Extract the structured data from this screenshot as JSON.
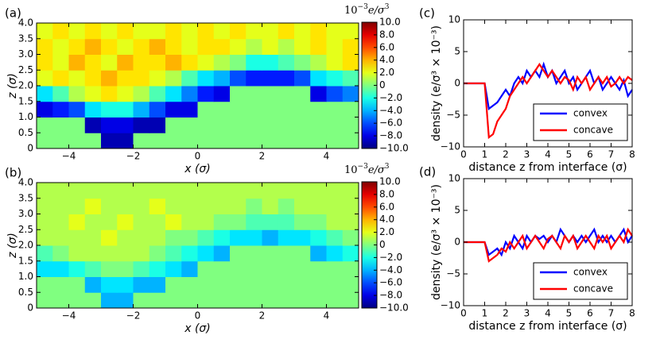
{
  "chart_data": [
    {
      "type": "heatmap",
      "panel_label": "(a)",
      "xlabel": "x (σ)",
      "ylabel": "z (σ)",
      "x": [
        -4.75,
        -4.25,
        -3.75,
        -3.25,
        -2.75,
        -2.25,
        -1.75,
        -1.25,
        -0.75,
        -0.25,
        0.25,
        0.75,
        1.25,
        1.75,
        2.25,
        2.75,
        3.25,
        3.75,
        4.25,
        4.75
      ],
      "y": [
        0.25,
        0.75,
        1.25,
        1.75,
        2.25,
        2.75,
        3.25,
        3.75
      ],
      "values": [
        [
          0,
          0,
          0,
          0,
          -9,
          -9,
          0,
          0,
          0,
          0,
          0,
          0,
          0,
          0,
          0,
          0,
          0,
          0,
          0,
          0
        ],
        [
          0,
          0,
          0,
          -9,
          -8,
          -8,
          -9,
          -9,
          0,
          0,
          0,
          0,
          0,
          0,
          0,
          0,
          0,
          0,
          0,
          0
        ],
        [
          -8,
          -7,
          -6,
          -3,
          -2,
          -2,
          -4,
          -6,
          -8,
          -8,
          0,
          0,
          0,
          0,
          0,
          0,
          0,
          0,
          0,
          0
        ],
        [
          -3,
          -1,
          1,
          2,
          3,
          2,
          1,
          -1,
          -3,
          -5,
          -7,
          -8,
          0,
          0,
          0,
          0,
          0,
          -8,
          -6,
          -5
        ],
        [
          2,
          3,
          2,
          3,
          4,
          3,
          3,
          2,
          1,
          -1,
          -3,
          -4,
          -6,
          -7,
          -7,
          -7,
          -6,
          -3,
          -2,
          -1
        ],
        [
          3,
          2,
          4,
          3,
          2,
          4,
          3,
          3,
          4,
          3,
          2,
          1,
          0,
          -2,
          -2,
          -1,
          0,
          1,
          2,
          3
        ],
        [
          3,
          2,
          3,
          4,
          3,
          2,
          3,
          4,
          3,
          2,
          3,
          3,
          2,
          1,
          2,
          1,
          2,
          3,
          2,
          3
        ],
        [
          2,
          3,
          2,
          3,
          2,
          3,
          2,
          2,
          3,
          2,
          3,
          2,
          3,
          2,
          2,
          3,
          2,
          3,
          2,
          2
        ]
      ],
      "xlim": [
        -5,
        5
      ],
      "ylim": [
        0,
        4
      ],
      "xticks": [
        {
          "value": -4,
          "label": "−4"
        },
        {
          "value": -2,
          "label": "−2"
        },
        0,
        2,
        4
      ],
      "yticks": [
        0,
        0.5,
        {
          "value": 1,
          "label": "1.0"
        },
        1.5,
        {
          "value": 2,
          "label": "2.0"
        },
        2.5,
        {
          "value": 3,
          "label": "3.0"
        },
        3.5,
        {
          "value": 4,
          "label": "4.0"
        }
      ],
      "colormap": "jet",
      "colorbar": {
        "label": [
          "10",
          "−3",
          "e/σ",
          "3"
        ],
        "lim": [
          -10,
          10
        ],
        "ticks": [
          {
            "value": 10,
            "label": "10.0"
          },
          {
            "value": 8,
            "label": "8.0"
          },
          {
            "value": 6,
            "label": "6.0"
          },
          {
            "value": 4,
            "label": "4.0"
          },
          {
            "value": 2,
            "label": "2.0"
          },
          0,
          {
            "value": -2,
            "label": "−2.0"
          },
          {
            "value": -4,
            "label": "−4.0"
          },
          {
            "value": -6,
            "label": "−6.0"
          },
          {
            "value": -8,
            "label": "−8.0"
          },
          {
            "value": -10,
            "label": "−10.0"
          }
        ]
      }
    },
    {
      "type": "heatmap",
      "panel_label": "(b)",
      "xlabel": "x (σ)",
      "ylabel": "z (σ)",
      "x": [
        -4.75,
        -4.25,
        -3.75,
        -3.25,
        -2.75,
        -2.25,
        -1.75,
        -1.25,
        -0.75,
        -0.25,
        0.25,
        0.75,
        1.25,
        1.75,
        2.25,
        2.75,
        3.25,
        3.75,
        4.25,
        4.75
      ],
      "y": [
        0.25,
        0.75,
        1.25,
        1.75,
        2.25,
        2.75,
        3.25,
        3.75
      ],
      "values": [
        [
          0,
          0,
          0,
          0,
          -4,
          -4,
          0,
          0,
          0,
          0,
          0,
          0,
          0,
          0,
          0,
          0,
          0,
          0,
          0,
          0
        ],
        [
          0,
          0,
          0,
          -4,
          -3,
          -3,
          -4,
          -4,
          0,
          0,
          0,
          0,
          0,
          0,
          0,
          0,
          0,
          0,
          0,
          0
        ],
        [
          -3,
          -3,
          -2,
          -1,
          0,
          0,
          -1,
          -2,
          -3,
          -4,
          0,
          0,
          0,
          0,
          0,
          0,
          0,
          0,
          0,
          0
        ],
        [
          -1,
          0,
          1,
          1,
          1,
          1,
          1,
          0,
          -1,
          -2,
          -3,
          -4,
          0,
          0,
          0,
          0,
          0,
          -4,
          -3,
          -2
        ],
        [
          1,
          1,
          1,
          1,
          2,
          1,
          1,
          1,
          0,
          0,
          -1,
          -2,
          -3,
          -3,
          -4,
          -3,
          -3,
          -2,
          -1,
          0
        ],
        [
          1,
          1,
          2,
          1,
          1,
          2,
          1,
          1,
          2,
          1,
          1,
          0,
          0,
          -1,
          -1,
          -1,
          0,
          0,
          1,
          1
        ],
        [
          1,
          1,
          1,
          2,
          1,
          1,
          1,
          2,
          1,
          1,
          1,
          1,
          1,
          0,
          1,
          0,
          1,
          1,
          1,
          1
        ],
        [
          1,
          1,
          1,
          1,
          1,
          1,
          1,
          1,
          1,
          1,
          1,
          1,
          1,
          1,
          1,
          1,
          1,
          1,
          1,
          1
        ]
      ],
      "xlim": [
        -5,
        5
      ],
      "ylim": [
        0,
        4
      ],
      "xticks": [
        {
          "value": -4,
          "label": "−4"
        },
        {
          "value": -2,
          "label": "−2"
        },
        0,
        2,
        4
      ],
      "yticks": [
        0,
        0.5,
        {
          "value": 1,
          "label": "1.0"
        },
        1.5,
        {
          "value": 2,
          "label": "2.0"
        },
        2.5,
        {
          "value": 3,
          "label": "3.0"
        },
        3.5,
        {
          "value": 4,
          "label": "4.0"
        }
      ],
      "colormap": "jet",
      "colorbar": {
        "label": [
          "10",
          "−3",
          "e/σ",
          "3"
        ],
        "lim": [
          -10,
          10
        ],
        "ticks": [
          {
            "value": 10,
            "label": "10.0"
          },
          {
            "value": 8,
            "label": "8.0"
          },
          {
            "value": 6,
            "label": "6.0"
          },
          {
            "value": 4,
            "label": "4.0"
          },
          {
            "value": 2,
            "label": "2.0"
          },
          0,
          {
            "value": -2,
            "label": "−2.0"
          },
          {
            "value": -4,
            "label": "−4.0"
          },
          {
            "value": -6,
            "label": "−6.0"
          },
          {
            "value": -8,
            "label": "−8.0"
          },
          {
            "value": -10,
            "label": "−10.0"
          }
        ]
      }
    },
    {
      "type": "line",
      "panel_label": "(c)",
      "xlabel": "distance z from interface (σ)",
      "ylabel": "density (e/σ³ × 10⁻³)",
      "x": [
        0,
        0.2,
        0.4,
        0.6,
        0.8,
        1.0,
        1.2,
        1.4,
        1.6,
        1.8,
        2.0,
        2.2,
        2.4,
        2.6,
        2.8,
        3.0,
        3.2,
        3.4,
        3.6,
        3.8,
        4.0,
        4.2,
        4.4,
        4.6,
        4.8,
        5.0,
        5.2,
        5.4,
        5.6,
        5.8,
        6.0,
        6.2,
        6.4,
        6.6,
        6.8,
        7.0,
        7.2,
        7.4,
        7.6,
        7.8,
        8.0
      ],
      "series": [
        {
          "name": "convex",
          "color": "#0000ff",
          "values": [
            0,
            0,
            0,
            0,
            0,
            0,
            -4,
            -3.5,
            -3,
            -2,
            -1,
            -2,
            0,
            1,
            0,
            2,
            1,
            2,
            1,
            3,
            1,
            2,
            0,
            1,
            2,
            0,
            1,
            -1,
            0,
            1,
            2,
            0,
            1,
            -1,
            0,
            1,
            0,
            -1,
            0.5,
            -2,
            -1
          ]
        },
        {
          "name": "concave",
          "color": "#ff0000",
          "values": [
            0,
            0,
            0,
            0,
            0,
            0,
            -8.5,
            -8,
            -6,
            -5,
            -4,
            -2,
            -1,
            0,
            1,
            0,
            1,
            2,
            3,
            2,
            1,
            2,
            1,
            0,
            1,
            0.5,
            -1,
            1,
            0,
            1,
            -1,
            0,
            1,
            0,
            1,
            -0.5,
            0,
            1,
            0,
            1,
            0.5
          ]
        }
      ],
      "xlim": [
        0,
        8
      ],
      "ylim": [
        -10,
        10
      ],
      "xticks": [
        0,
        1,
        2,
        3,
        4,
        5,
        6,
        7,
        8
      ],
      "yticks": [
        {
          "value": -10,
          "label": "−10"
        },
        {
          "value": -5,
          "label": "−5"
        },
        0,
        5,
        10
      ],
      "legend": "lower right"
    },
    {
      "type": "line",
      "panel_label": "(d)",
      "xlabel": "distance z from interface (σ)",
      "ylabel": "density (e/σ³ × 10⁻³)",
      "x": [
        0,
        0.2,
        0.4,
        0.6,
        0.8,
        1.0,
        1.2,
        1.4,
        1.6,
        1.8,
        2.0,
        2.2,
        2.4,
        2.6,
        2.8,
        3.0,
        3.2,
        3.4,
        3.6,
        3.8,
        4.0,
        4.2,
        4.4,
        4.6,
        4.8,
        5.0,
        5.2,
        5.4,
        5.6,
        5.8,
        6.0,
        6.2,
        6.4,
        6.6,
        6.8,
        7.0,
        7.2,
        7.4,
        7.6,
        7.8,
        8.0
      ],
      "series": [
        {
          "name": "convex",
          "color": "#0000ff",
          "values": [
            0,
            0,
            0,
            0,
            0,
            0,
            -2,
            -1.5,
            -1,
            -2,
            0,
            -1,
            1,
            0,
            -1,
            1,
            0,
            1,
            0.5,
            1,
            0,
            1,
            0,
            2,
            1,
            0,
            1,
            0,
            1,
            0,
            1,
            2,
            0,
            1,
            0,
            1,
            0,
            1,
            2,
            0,
            1
          ]
        },
        {
          "name": "concave",
          "color": "#ff0000",
          "values": [
            0,
            0,
            0,
            0,
            0,
            0,
            -3,
            -2.5,
            -2,
            -1,
            -1.5,
            0,
            -1,
            0,
            1,
            -1,
            0,
            1,
            0,
            -1,
            0.5,
            1,
            0,
            -1,
            1,
            0,
            1,
            -1,
            0,
            1,
            0,
            -1,
            1,
            0,
            1,
            -1,
            0,
            1,
            0,
            2,
            1
          ]
        }
      ],
      "xlim": [
        0,
        8
      ],
      "ylim": [
        -10,
        10
      ],
      "xticks": [
        0,
        1,
        2,
        3,
        4,
        5,
        6,
        7,
        8
      ],
      "yticks": [
        {
          "value": -10,
          "label": "−10"
        },
        {
          "value": -5,
          "label": "−5"
        },
        0,
        5,
        10
      ],
      "legend": "lower right"
    }
  ]
}
